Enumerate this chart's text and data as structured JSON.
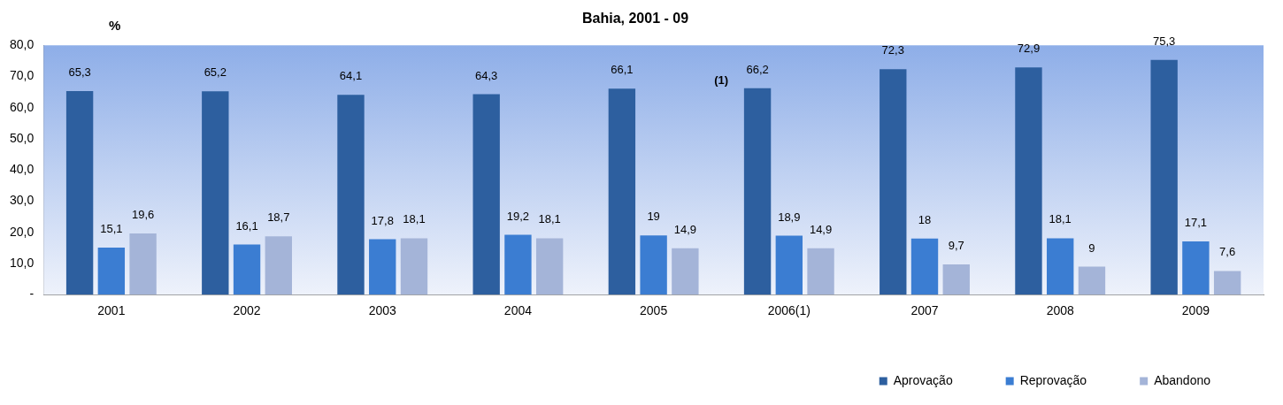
{
  "chart_data": {
    "type": "bar",
    "title": "Bahia, 2001 - 09",
    "ylabel": "%",
    "categories": [
      "2001",
      "2002",
      "2003",
      "2004",
      "2005",
      "2006(1)",
      "2007",
      "2008",
      "2009"
    ],
    "series": [
      {
        "name": "Aprovação",
        "color": "#2d5f9f",
        "values": [
          65.3,
          65.2,
          64.1,
          64.3,
          66.1,
          66.2,
          72.3,
          72.9,
          75.3
        ],
        "value_labels": [
          "65,3",
          "65,2",
          "64,1",
          "64,3",
          "66,1",
          "66,2",
          "72,3",
          "72,9",
          "75,3"
        ]
      },
      {
        "name": "Reprovação",
        "color": "#3b7dd2",
        "values": [
          15.1,
          16.1,
          17.8,
          19.2,
          19,
          18.9,
          18,
          18.1,
          17.1
        ],
        "value_labels": [
          "15,1",
          "16,1",
          "17,8",
          "19,2",
          "19",
          "18,9",
          "18",
          "18,1",
          "17,1"
        ]
      },
      {
        "name": "Abandono",
        "color": "#a4b4d8",
        "values": [
          19.6,
          18.7,
          18.1,
          18.1,
          14.9,
          14.9,
          9.7,
          9,
          7.6
        ],
        "value_labels": [
          "19,6",
          "18,7",
          "18,1",
          "18,1",
          "14,9",
          "14,9",
          "9,7",
          "9",
          "7,6"
        ]
      }
    ],
    "ylim": [
      0,
      80
    ],
    "yticks": [
      {
        "value": 0,
        "label": "-"
      },
      {
        "value": 10,
        "label": "10,0"
      },
      {
        "value": 20,
        "label": "20,0"
      },
      {
        "value": 30,
        "label": "30,0"
      },
      {
        "value": 40,
        "label": "40,0"
      },
      {
        "value": 50,
        "label": "50,0"
      },
      {
        "value": 60,
        "label": "60,0"
      },
      {
        "value": 70,
        "label": "70,0"
      },
      {
        "value": 80,
        "label": "80,0"
      }
    ],
    "annotations": [
      "(1)"
    ],
    "legend": "bottom",
    "grid": false
  }
}
